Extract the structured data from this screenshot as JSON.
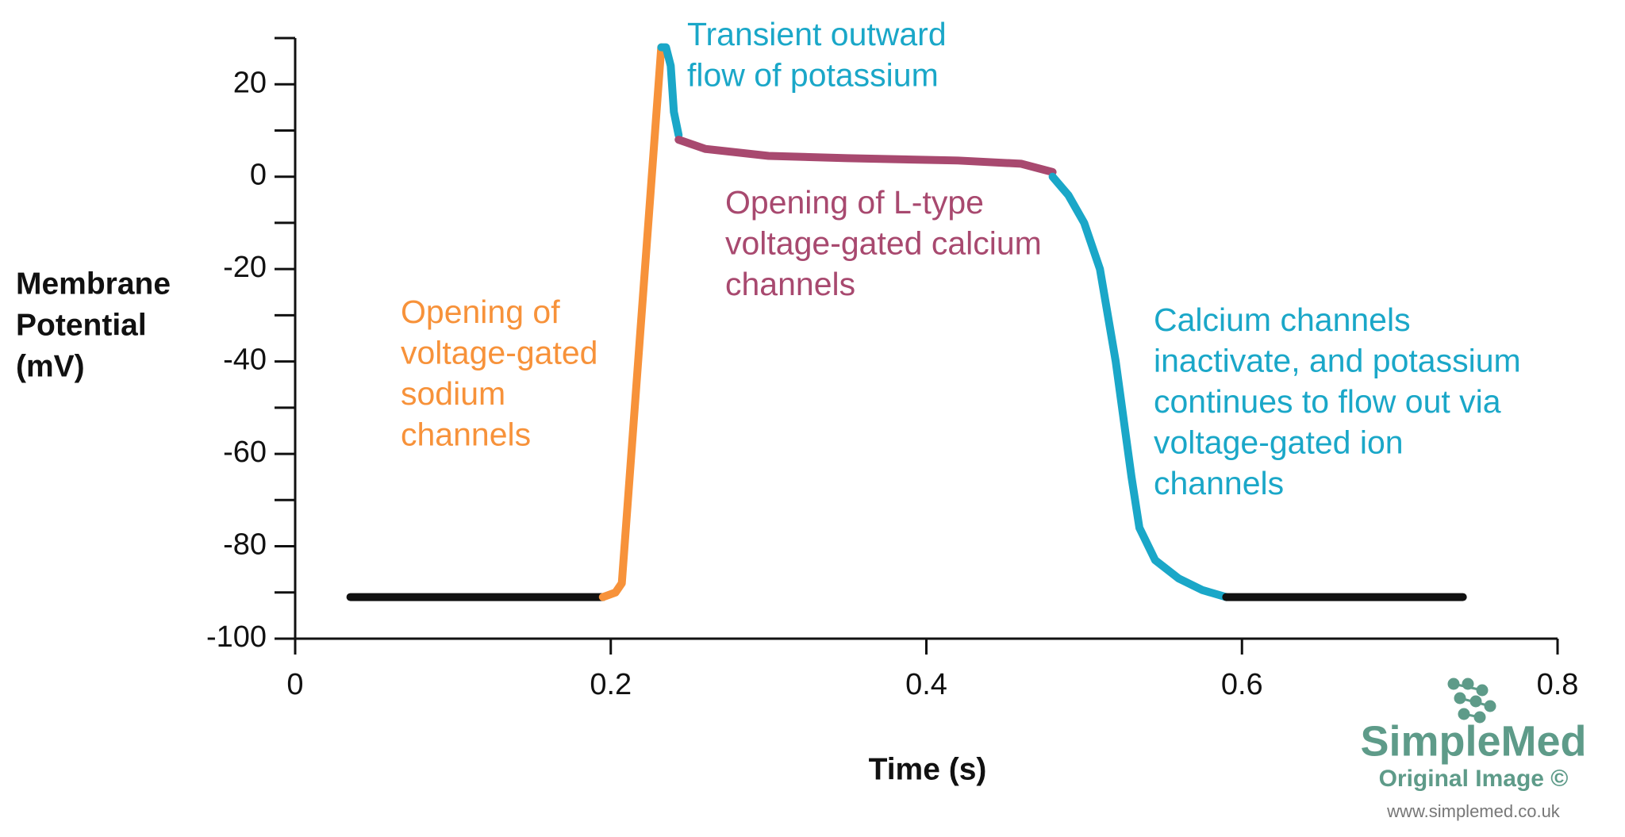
{
  "chart_data": {
    "type": "line",
    "y_label": [
      "Membrane",
      "Potential",
      "(mV)"
    ],
    "x_label": "Time (s)",
    "xlim": [
      0,
      0.8
    ],
    "xticks": [
      0,
      0.2,
      0.4,
      0.6,
      0.8
    ],
    "ylim": [
      -100,
      30
    ],
    "yticks": [
      -100,
      -80,
      -60,
      -40,
      -20,
      0,
      20
    ],
    "yminorticks": [
      -90,
      -70,
      -50,
      -30,
      -10,
      10,
      30
    ],
    "series": [
      {
        "color": "#111111",
        "x": [
          0.035,
          0.195
        ],
        "values": [
          -91,
          -91
        ]
      },
      {
        "color": "#f7923a",
        "x": [
          0.195,
          0.203,
          0.207,
          0.232
        ],
        "values": [
          -91,
          -90,
          -88,
          28
        ]
      },
      {
        "color": "#1aa7c8",
        "x": [
          0.232,
          0.235,
          0.238,
          0.24,
          0.243
        ],
        "values": [
          28,
          28,
          24,
          14,
          9
        ]
      },
      {
        "color": "#a8496f",
        "x": [
          0.243,
          0.26,
          0.3,
          0.35,
          0.42,
          0.46,
          0.48
        ],
        "values": [
          8,
          6,
          4.5,
          4,
          3.5,
          2.8,
          1
        ]
      },
      {
        "color": "#1aa7c8",
        "x": [
          0.48,
          0.49,
          0.5,
          0.51,
          0.52,
          0.53,
          0.535,
          0.545,
          0.56,
          0.575,
          0.59
        ],
        "values": [
          0,
          -4,
          -10,
          -20,
          -40,
          -65,
          -76,
          -83,
          -87,
          -89.5,
          -91
        ]
      },
      {
        "color": "#111111",
        "x": [
          0.59,
          0.74
        ],
        "values": [
          -91,
          -91
        ]
      }
    ],
    "annotations": [
      {
        "lines": [
          "Transient outward",
          "flow of potassium"
        ],
        "color": "#1aa7c8"
      },
      {
        "lines": [
          "Opening of",
          "voltage-gated",
          "sodium",
          "channels"
        ],
        "color": "#f7923a"
      },
      {
        "lines": [
          "Opening of L-type",
          "voltage-gated calcium",
          "channels"
        ],
        "color": "#a8496f"
      },
      {
        "lines": [
          "Calcium channels",
          "inactivate, and potassium",
          "continues to flow out via",
          "voltage-gated ion",
          "channels"
        ],
        "color": "#1aa7c8"
      }
    ]
  },
  "logo": {
    "name": "SimpleMed",
    "tagline": "Original Image ©",
    "url": "www.simplemed.co.uk"
  }
}
